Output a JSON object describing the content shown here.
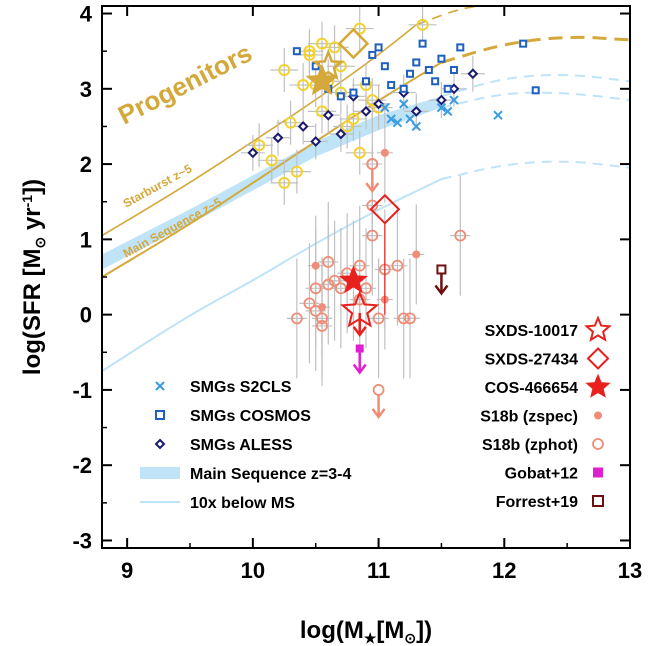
{
  "chart_data": {
    "type": "scatter",
    "xlim": [
      8.8,
      13.0
    ],
    "ylim": [
      -3.1,
      4.1
    ],
    "x_ticks": [
      "9",
      "10",
      "11",
      "12",
      "13"
    ],
    "y_ticks": [
      "4",
      "3",
      "2",
      "1",
      "0",
      "-1",
      "-2",
      "-3"
    ],
    "x_tick_values": [
      9,
      10,
      11,
      12,
      13
    ],
    "y_tick_values": [
      4,
      3,
      2,
      1,
      0,
      -1,
      -2,
      -3
    ],
    "xlabel_parts": [
      "log(M",
      "★",
      "[M",
      "⊙",
      "])"
    ],
    "ylabel_parts": [
      "log(SFR [M",
      "⊙",
      " yr",
      "-1",
      "])"
    ],
    "annotations": {
      "progenitors": "Progenitors",
      "starburst": "Starburst z~5",
      "main_sequence": "Main Sequence z~5"
    },
    "legend_left": [
      {
        "label": "SMGs S2CLS",
        "marker": "x"
      },
      {
        "label": "SMGs COSMOS",
        "marker": "square"
      },
      {
        "label": "SMGs ALESS",
        "marker": "diamond"
      },
      {
        "label": "Main Sequence z=3-4",
        "marker": "band"
      },
      {
        "label": "10x below MS",
        "marker": "line"
      }
    ],
    "legend_right": [
      {
        "label": "SXDS-10017",
        "marker": "star-open"
      },
      {
        "label": "SXDS-27434",
        "marker": "diamond-open"
      },
      {
        "label": "COS-466654",
        "marker": "star-filled"
      },
      {
        "label": "S18b (zspec)",
        "marker": "dot"
      },
      {
        "label": "S18b (zphot)",
        "marker": "circle-open"
      },
      {
        "label": "Gobat+12",
        "marker": "square-filled"
      },
      {
        "label": "Forrest+19",
        "marker": "square-open"
      }
    ],
    "colors": {
      "s2cls": "#3b9be0",
      "cosmos": "#1f5fbf",
      "aless": "#1a1a6e",
      "ms_band": "#bfe3f7",
      "below_ms": "#bfe3f7",
      "gold": "#d4a83a",
      "yellow": "#f2d230",
      "red": "#e8201e",
      "salmon": "#f08d78",
      "gobat": "#e020d0",
      "forrest": "#6e1010",
      "errbar": "#c0c0c0"
    },
    "series": {
      "s2cls": {
        "x": [
          11.05,
          11.2,
          11.1,
          11.15,
          11.25,
          11.3,
          11.5,
          11.55,
          11.6,
          11.95
        ],
        "y": [
          2.75,
          2.8,
          2.6,
          2.55,
          2.6,
          2.5,
          2.75,
          2.7,
          2.85,
          2.65
        ]
      },
      "cosmos": {
        "x": [
          10.35,
          10.5,
          10.6,
          10.7,
          10.8,
          10.9,
          11.0,
          11.05,
          11.1,
          11.2,
          11.25,
          11.3,
          11.35,
          11.4,
          11.45,
          11.5,
          11.55,
          11.6,
          11.65,
          12.15,
          12.25,
          10.95
        ],
        "y": [
          3.5,
          3.3,
          3.0,
          2.9,
          2.95,
          3.1,
          3.55,
          3.3,
          3.05,
          3.0,
          3.2,
          3.35,
          3.6,
          3.25,
          3.1,
          3.4,
          3.0,
          3.25,
          3.55,
          3.6,
          2.98,
          3.45
        ]
      },
      "aless": {
        "x": [
          10.0,
          10.2,
          10.4,
          10.5,
          10.6,
          10.7,
          10.8,
          10.9,
          11.0,
          11.2,
          11.3,
          11.5,
          11.6,
          11.75
        ],
        "y": [
          2.15,
          2.35,
          2.5,
          2.3,
          2.65,
          2.4,
          2.9,
          2.7,
          2.8,
          2.95,
          2.7,
          2.85,
          3.0,
          3.2
        ]
      },
      "yellow": {
        "x": [
          10.05,
          10.15,
          10.3,
          10.4,
          10.45,
          10.5,
          10.55,
          10.6,
          10.65,
          10.7,
          10.75,
          10.8,
          10.85,
          10.9,
          10.95,
          11.0,
          11.35,
          10.25,
          10.35,
          10.45,
          10.55,
          10.7,
          10.25,
          10.85
        ],
        "y": [
          2.25,
          2.05,
          2.55,
          3.05,
          3.5,
          3.05,
          2.7,
          3.1,
          3.55,
          3.3,
          2.5,
          2.6,
          3.8,
          3.05,
          2.85,
          2.75,
          3.85,
          1.75,
          1.9,
          3.45,
          3.6,
          2.95,
          3.25,
          2.15
        ]
      },
      "s18b_zspec": {
        "x": [
          10.5,
          11.05,
          11.3,
          11.05,
          10.55
        ],
        "y": [
          0.65,
          2.15,
          0.8,
          0.2,
          0.1
        ]
      },
      "s18b_zphot": {
        "x": [
          10.35,
          10.45,
          10.5,
          10.55,
          10.6,
          10.65,
          10.7,
          10.75,
          10.8,
          10.85,
          10.9,
          10.95,
          11.0,
          11.05,
          11.15,
          11.2,
          11.25,
          11.65,
          10.55,
          10.95,
          10.95,
          10.6,
          10.85,
          10.5
        ],
        "y": [
          -0.05,
          0.15,
          0.05,
          -0.05,
          0.4,
          0.45,
          0.35,
          0.55,
          0.45,
          0.65,
          0.35,
          1.05,
          -0.05,
          0.6,
          0.65,
          -0.05,
          -0.05,
          1.05,
          -0.15,
          2.0,
          1.45,
          0.7,
          0.2,
          0.35
        ]
      },
      "limits_salmon": {
        "x": [
          10.95,
          11.0
        ],
        "y": [
          2.0,
          -1.0
        ]
      },
      "progenitors_open_diamond": {
        "x": [
          10.8
        ],
        "y": [
          3.6
        ]
      },
      "progenitors_open_star": {
        "x": [
          10.6
        ],
        "y": [
          3.3
        ]
      },
      "progenitors_filled_star": {
        "x": [
          10.55
        ],
        "y": [
          3.1
        ]
      },
      "sxds_10017": {
        "x": [
          10.85
        ],
        "y": [
          0.05
        ]
      },
      "sxds_27434": {
        "x": [
          11.05
        ],
        "y": [
          1.4
        ]
      },
      "cos_466654": {
        "x": [
          10.8
        ],
        "y": [
          0.45
        ]
      },
      "gobat": {
        "x": [
          10.85
        ],
        "y": [
          -0.45
        ]
      },
      "forrest": {
        "x": [
          11.5
        ],
        "y": [
          0.6
        ]
      }
    },
    "curves": {
      "ms_z34_band_low": {
        "x": [
          8.8,
          9.5,
          10.0,
          10.5,
          11.0,
          11.5
        ],
        "y": [
          0.6,
          1.2,
          1.65,
          2.1,
          2.45,
          2.75
        ]
      },
      "ms_z34_band_high": {
        "x": [
          8.8,
          9.5,
          10.0,
          10.5,
          11.0,
          11.5
        ],
        "y": [
          0.8,
          1.4,
          1.85,
          2.3,
          2.65,
          2.9
        ]
      },
      "ms_z34_dashed_low": {
        "x": [
          11.5,
          12.0,
          12.5,
          13.0
        ],
        "y": [
          2.75,
          2.95,
          2.95,
          2.85
        ]
      },
      "ms_z34_dashed_high": {
        "x": [
          11.5,
          12.0,
          12.5,
          13.0
        ],
        "y": [
          2.9,
          3.15,
          3.2,
          3.1
        ]
      },
      "below_ms": {
        "x": [
          8.8,
          9.5,
          10.0,
          10.5,
          11.0,
          11.5
        ],
        "y": [
          -0.75,
          0.0,
          0.45,
          0.95,
          1.4,
          1.8
        ]
      },
      "below_ms_dashed": {
        "x": [
          11.5,
          12.0,
          12.5,
          13.0
        ],
        "y": [
          1.8,
          2.0,
          2.05,
          1.95
        ]
      },
      "ms_z5": {
        "x": [
          8.8,
          9.5,
          10.0,
          10.5,
          11.0,
          11.5
        ],
        "y": [
          0.5,
          1.2,
          1.75,
          2.3,
          2.85,
          3.35
        ]
      },
      "ms_z5_dashed": {
        "x": [
          11.5,
          12.0,
          12.5,
          13.0
        ],
        "y": [
          3.35,
          3.6,
          3.7,
          3.65
        ]
      },
      "starburst_z5": {
        "x": [
          8.8,
          9.5,
          10.0,
          10.5,
          11.0,
          11.3
        ],
        "y": [
          1.05,
          1.75,
          2.3,
          2.85,
          3.45,
          3.85
        ]
      },
      "starburst_z5_dashed": {
        "x": [
          11.3,
          11.7,
          12.0
        ],
        "y": [
          3.85,
          4.1,
          4.1
        ]
      }
    }
  }
}
